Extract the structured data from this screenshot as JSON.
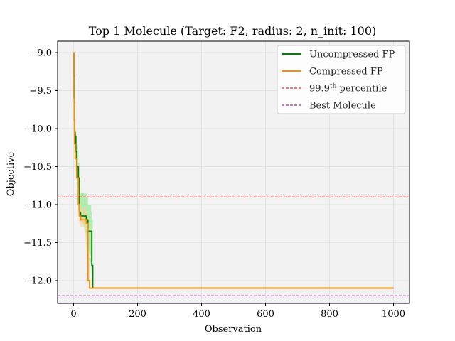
{
  "chart_data": {
    "type": "line",
    "title": "Top 1 Molecule (Target: F2, radius: 2, n_init: 100)",
    "xlabel": "Observation",
    "ylabel": "Objective",
    "xlim": [
      -50,
      1050
    ],
    "ylim": [
      -12.3,
      -8.85
    ],
    "xticks": [
      0,
      200,
      400,
      600,
      800,
      1000
    ],
    "yticks": [
      -9.0,
      -9.5,
      -10.0,
      -10.5,
      -11.0,
      -11.5,
      -12.0
    ],
    "xtick_labels": [
      "0",
      "200",
      "400",
      "600",
      "800",
      "1000"
    ],
    "ytick_labels": [
      "−9.0",
      "−9.5",
      "−10.0",
      "−10.5",
      "−11.0",
      "−11.5",
      "−12.0"
    ],
    "grid": true,
    "legend_position": "top-right",
    "series": [
      {
        "name": "Uncompressed FP",
        "color": "#008000",
        "band_color": "#7ee87e",
        "x": [
          0,
          1,
          2,
          3,
          5,
          7,
          10,
          13,
          15,
          18,
          22,
          30,
          40,
          45,
          55,
          57,
          60,
          1000
        ],
        "y": [
          -9.0,
          -9.3,
          -9.7,
          -10.05,
          -10.1,
          -10.3,
          -10.5,
          -10.5,
          -10.65,
          -11.1,
          -11.15,
          -11.15,
          -11.2,
          -11.35,
          -11.35,
          -11.8,
          -12.1,
          -12.1
        ],
        "lower": [
          -9.0,
          -9.3,
          -9.7,
          -10.05,
          -10.3,
          -10.5,
          -10.7,
          -10.8,
          -10.9,
          -11.2,
          -11.25,
          -11.25,
          -11.5,
          -11.7,
          -11.8,
          -12.1,
          -12.1,
          -12.1
        ],
        "upper": [
          -9.0,
          -9.3,
          -9.7,
          -10.05,
          -10.0,
          -10.1,
          -10.2,
          -10.3,
          -10.45,
          -10.85,
          -10.85,
          -10.85,
          -10.9,
          -11.0,
          -11.1,
          -11.2,
          -12.1,
          -12.1
        ]
      },
      {
        "name": "Compressed FP",
        "color": "#ff8c00",
        "band_color": "#ffd19a",
        "x": [
          0,
          1,
          2,
          3,
          5,
          10,
          15,
          18,
          22,
          35,
          40,
          45,
          50,
          1000
        ],
        "y": [
          -9.0,
          -9.6,
          -9.9,
          -10.2,
          -10.4,
          -10.65,
          -11.0,
          -11.15,
          -11.2,
          -11.2,
          -11.25,
          -12.0,
          -12.1,
          -12.1
        ],
        "lower": [
          -9.0,
          -9.6,
          -9.9,
          -10.2,
          -10.5,
          -10.8,
          -11.2,
          -11.3,
          -11.3,
          -11.3,
          -11.9,
          -12.1,
          -12.1,
          -12.1
        ],
        "upper": [
          -9.0,
          -9.6,
          -9.9,
          -10.2,
          -10.3,
          -10.5,
          -10.8,
          -11.0,
          -11.05,
          -11.05,
          -11.1,
          -11.6,
          -12.1,
          -12.1
        ]
      }
    ],
    "reference_lines": [
      {
        "name": "99.9th percentile",
        "label_main": "99.9",
        "label_sup": "th",
        "label_rest": " percentile",
        "y": -10.9,
        "color": "#cc0000"
      },
      {
        "name": "Best Molecule",
        "label_main": "Best Molecule",
        "label_sup": "",
        "label_rest": "",
        "y": -12.2,
        "color": "#800080"
      }
    ]
  }
}
